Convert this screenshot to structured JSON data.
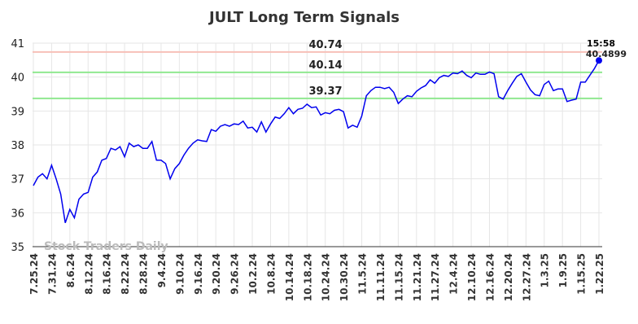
{
  "chart_data": {
    "type": "line",
    "title": "JULT Long Term Signals",
    "categories": [
      "7.25.24",
      null,
      null,
      null,
      "7.31.24",
      null,
      null,
      null,
      "8.6.24",
      null,
      null,
      null,
      "8.12.24",
      null,
      null,
      null,
      "8.16.24",
      null,
      null,
      null,
      "8.22.24",
      null,
      null,
      null,
      "8.28.24",
      null,
      null,
      null,
      "9.4.24",
      null,
      null,
      null,
      "9.10.24",
      null,
      null,
      null,
      "9.16.24",
      null,
      null,
      null,
      "9.20.24",
      null,
      null,
      null,
      "9.26.24",
      null,
      null,
      null,
      "10.2.24",
      null,
      null,
      null,
      "10.8.24",
      null,
      null,
      null,
      "10.14.24",
      null,
      null,
      null,
      "10.18.24",
      null,
      null,
      null,
      "10.24.24",
      null,
      null,
      null,
      "10.30.24",
      null,
      null,
      null,
      "11.5.24",
      null,
      null,
      null,
      "11.11.24",
      null,
      null,
      null,
      "11.15.24",
      null,
      null,
      null,
      "11.21.24",
      null,
      null,
      null,
      "11.27.24",
      null,
      null,
      null,
      "12.4.24",
      null,
      null,
      null,
      "12.10.24",
      null,
      null,
      null,
      "12.16.24",
      null,
      null,
      null,
      "12.20.24",
      null,
      null,
      null,
      "12.27.24",
      null,
      null,
      null,
      "1.3.25",
      null,
      null,
      null,
      "1.9.25",
      null,
      null,
      null,
      "1.15.25",
      null,
      null,
      null,
      "1.22.25"
    ],
    "values": [
      36.8,
      37.05,
      37.15,
      37.0,
      37.4,
      37.0,
      36.55,
      35.7,
      36.1,
      35.85,
      36.4,
      36.55,
      36.6,
      37.05,
      37.2,
      37.55,
      37.6,
      37.9,
      37.85,
      37.95,
      37.65,
      38.05,
      37.95,
      38.0,
      37.9,
      37.9,
      38.1,
      37.55,
      37.55,
      37.45,
      37.0,
      37.3,
      37.45,
      37.7,
      37.9,
      38.05,
      38.15,
      38.12,
      38.1,
      38.45,
      38.4,
      38.55,
      38.6,
      38.55,
      38.62,
      38.6,
      38.7,
      38.5,
      38.52,
      38.38,
      38.68,
      38.38,
      38.62,
      38.82,
      38.78,
      38.92,
      39.1,
      38.92,
      39.05,
      39.08,
      39.2,
      39.1,
      39.12,
      38.88,
      38.95,
      38.92,
      39.02,
      39.05,
      38.98,
      38.5,
      38.58,
      38.52,
      38.85,
      39.45,
      39.6,
      39.7,
      39.7,
      39.66,
      39.7,
      39.55,
      39.22,
      39.35,
      39.45,
      39.42,
      39.58,
      39.68,
      39.75,
      39.92,
      39.82,
      39.98,
      40.05,
      40.02,
      40.12,
      40.1,
      40.18,
      40.05,
      39.98,
      40.12,
      40.08,
      40.08,
      40.15,
      40.1,
      39.42,
      39.35,
      39.6,
      39.82,
      40.02,
      40.1,
      39.85,
      39.62,
      39.48,
      39.45,
      39.78,
      39.88,
      39.6,
      39.65,
      39.65,
      39.28,
      39.32,
      39.35,
      39.85,
      39.85,
      40.05,
      40.25,
      40.4899
    ],
    "color": "#0000ee",
    "ylim": [
      35,
      41
    ],
    "yticks": [
      35,
      36,
      37,
      38,
      39,
      40,
      41
    ],
    "grid": true,
    "hlines": [
      {
        "value": 40.74,
        "color": "#8b0000",
        "line_color": "#f7c0b8"
      },
      {
        "value": 40.14,
        "color": "#006400",
        "line_color": "#90e890"
      },
      {
        "value": 39.37,
        "color": "#006400",
        "line_color": "#90e890"
      }
    ],
    "last_time": "15:58",
    "watermark": "Stock Traders Daily"
  }
}
